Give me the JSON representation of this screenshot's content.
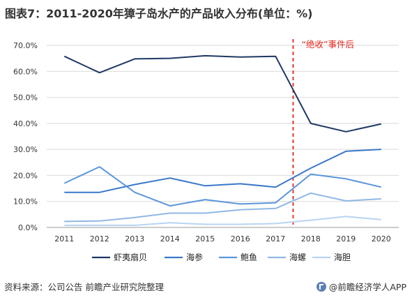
{
  "title": "图表7：2011-2020年獐子岛水产的产品收入分布(单位：%)",
  "annotation": "“绝收”事件后",
  "source": "资料来源：公司公告 前瞻产业研究院整理",
  "brand": "@前瞻经济学人APP",
  "colors": {
    "series": [
      "#1f3864",
      "#3a78c9",
      "#5a96dc",
      "#8fb8e6",
      "#b8d4f2"
    ],
    "annotation": "#e0261c"
  },
  "chart_data": {
    "type": "line",
    "x": [
      "2011",
      "2012",
      "2013",
      "2014",
      "2015",
      "2016",
      "2017",
      "2018",
      "2019",
      "2020"
    ],
    "y_ticks": [
      "0.0%",
      "10.0%",
      "20.0%",
      "30.0%",
      "40.0%",
      "50.0%",
      "60.0%",
      "70.0%"
    ],
    "ylim": [
      0,
      70
    ],
    "grid": true,
    "legend_position": "bottom",
    "event_marker": {
      "between": [
        "2017",
        "2018"
      ],
      "style": "dashed vertical line"
    },
    "series": [
      {
        "name": "虾夷扇贝",
        "values": [
          65.8,
          59.5,
          64.8,
          65.0,
          66.0,
          65.5,
          65.8,
          40.0,
          36.8,
          39.8
        ]
      },
      {
        "name": "海参",
        "values": [
          13.5,
          13.5,
          16.5,
          19.0,
          16.0,
          16.8,
          15.5,
          22.8,
          29.3,
          30.0
        ]
      },
      {
        "name": "鲍鱼",
        "values": [
          17.0,
          23.3,
          13.5,
          8.3,
          10.7,
          9.0,
          9.5,
          20.5,
          18.7,
          15.5
        ]
      },
      {
        "name": "海螺",
        "values": [
          2.3,
          2.5,
          3.8,
          5.5,
          5.5,
          6.8,
          7.3,
          13.2,
          10.2,
          11.0
        ]
      },
      {
        "name": "海胆",
        "values": [
          0.8,
          0.8,
          0.8,
          1.8,
          1.2,
          1.2,
          1.5,
          2.8,
          4.2,
          3.0
        ]
      }
    ]
  }
}
